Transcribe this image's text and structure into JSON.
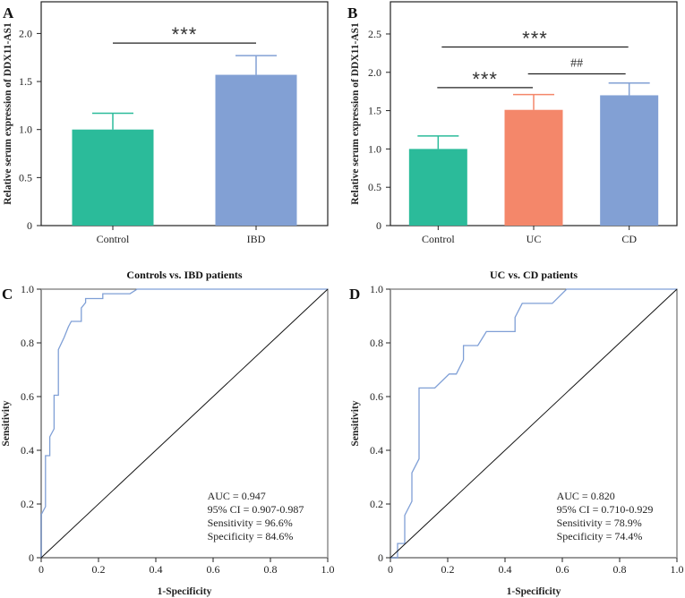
{
  "chart_data": [
    {
      "panel": "A",
      "type": "bar",
      "title": "",
      "ylabel": "Relative serum expression of DDX11-AS1",
      "xlabel": "",
      "ylim": [
        0,
        2.33
      ],
      "yticks": [
        "0",
        "0.5",
        "1.0",
        "1.5",
        "2.0"
      ],
      "ytick_values": [
        0,
        0.5,
        1.0,
        1.5,
        2.0
      ],
      "categories": [
        "Control",
        "IBD"
      ],
      "values": [
        1.0,
        1.57
      ],
      "errors": [
        0.17,
        0.2
      ],
      "colors": [
        "#2bbb9a",
        "#82a0d4"
      ],
      "annotations": [
        {
          "from": 0,
          "to": 1,
          "label": "***",
          "y": 1.9
        }
      ]
    },
    {
      "panel": "B",
      "type": "bar",
      "title": "",
      "ylabel": "Relative serum expression of DDX11-AS1",
      "xlabel": "",
      "ylim": [
        0,
        2.92
      ],
      "yticks": [
        "0",
        "0.5",
        "1.0",
        "1.5",
        "2.0",
        "2.5"
      ],
      "ytick_values": [
        0,
        0.5,
        1.0,
        1.5,
        2.0,
        2.5
      ],
      "categories": [
        "Control",
        "UC",
        "CD"
      ],
      "values": [
        1.0,
        1.51,
        1.7
      ],
      "errors": [
        0.17,
        0.2,
        0.16
      ],
      "colors": [
        "#2bbb9a",
        "#f4876a",
        "#82a0d4"
      ],
      "annotations": [
        {
          "from": 0,
          "to": 1,
          "label": "***",
          "y": 1.8
        },
        {
          "from": 1,
          "to": 2,
          "label": "##",
          "y": 1.98
        },
        {
          "from": 0,
          "to": 2,
          "label": "***",
          "y": 2.33
        }
      ]
    },
    {
      "panel": "C",
      "type": "line",
      "title": "Controls vs. IBD patients",
      "xlabel": "1-Specificity",
      "ylabel": "Sensitivity",
      "xlim": [
        0,
        1
      ],
      "ylim": [
        0,
        1
      ],
      "xticks": [
        "0",
        "0.2",
        "0.4",
        "0.6",
        "0.8",
        "1.0"
      ],
      "yticks": [
        "0",
        "0.2",
        "0.4",
        "0.6",
        "0.8",
        "1.0"
      ],
      "tick_values": [
        0,
        0.2,
        0.4,
        0.6,
        0.8,
        1.0
      ],
      "series": [
        {
          "name": "ROC",
          "color": "#7f9fd6",
          "x": [
            0,
            0,
            0.015,
            0.015,
            0.03,
            0.03,
            0.045,
            0.045,
            0.06,
            0.06,
            0.08,
            0.095,
            0.105,
            0.14,
            0.14,
            0.155,
            0.155,
            0.215,
            0.215,
            0.31,
            0.335,
            1.0
          ],
          "y": [
            0,
            0.16,
            0.19,
            0.38,
            0.38,
            0.45,
            0.48,
            0.605,
            0.605,
            0.775,
            0.82,
            0.86,
            0.88,
            0.88,
            0.93,
            0.95,
            0.965,
            0.965,
            0.983,
            0.983,
            1.0,
            1.0
          ]
        },
        {
          "name": "Reference",
          "color": "#111111",
          "x": [
            0,
            1
          ],
          "y": [
            0,
            1
          ]
        }
      ],
      "stats": {
        "auc": "AUC = 0.947",
        "ci": "95% CI = 0.907-0.987",
        "sensitivity": "Sensitivity = 96.6%",
        "specificity": "Specificity = 84.6%"
      }
    },
    {
      "panel": "D",
      "type": "line",
      "title": "UC vs. CD patients",
      "xlabel": "1-Specificity",
      "ylabel": "Sensitivity",
      "xlim": [
        0,
        1
      ],
      "ylim": [
        0,
        1
      ],
      "xticks": [
        "0",
        "0.2",
        "0.4",
        "0.6",
        "0.8",
        "1.0"
      ],
      "yticks": [
        "0",
        "0.2",
        "0.4",
        "0.6",
        "0.8",
        "1.0"
      ],
      "tick_values": [
        0,
        0.2,
        0.4,
        0.6,
        0.8,
        1.0
      ],
      "series": [
        {
          "name": "ROC",
          "color": "#7f9fd6",
          "x": [
            0,
            0.025,
            0.025,
            0.05,
            0.05,
            0.075,
            0.075,
            0.1,
            0.1,
            0.155,
            0.205,
            0.23,
            0.255,
            0.255,
            0.305,
            0.335,
            0.435,
            0.435,
            0.46,
            0.565,
            0.615,
            1.0
          ],
          "y": [
            0,
            0,
            0.053,
            0.053,
            0.158,
            0.21,
            0.316,
            0.368,
            0.632,
            0.632,
            0.684,
            0.684,
            0.737,
            0.79,
            0.79,
            0.842,
            0.842,
            0.895,
            0.947,
            0.947,
            1.0,
            1.0
          ]
        },
        {
          "name": "Reference",
          "color": "#111111",
          "x": [
            0,
            1
          ],
          "y": [
            0,
            1
          ]
        }
      ],
      "stats": {
        "auc": "AUC = 0.820",
        "ci": "95% CI = 0.710-0.929",
        "sensitivity": "Sensitivity = 78.9%",
        "specificity": "Specificity = 74.4%"
      }
    }
  ]
}
